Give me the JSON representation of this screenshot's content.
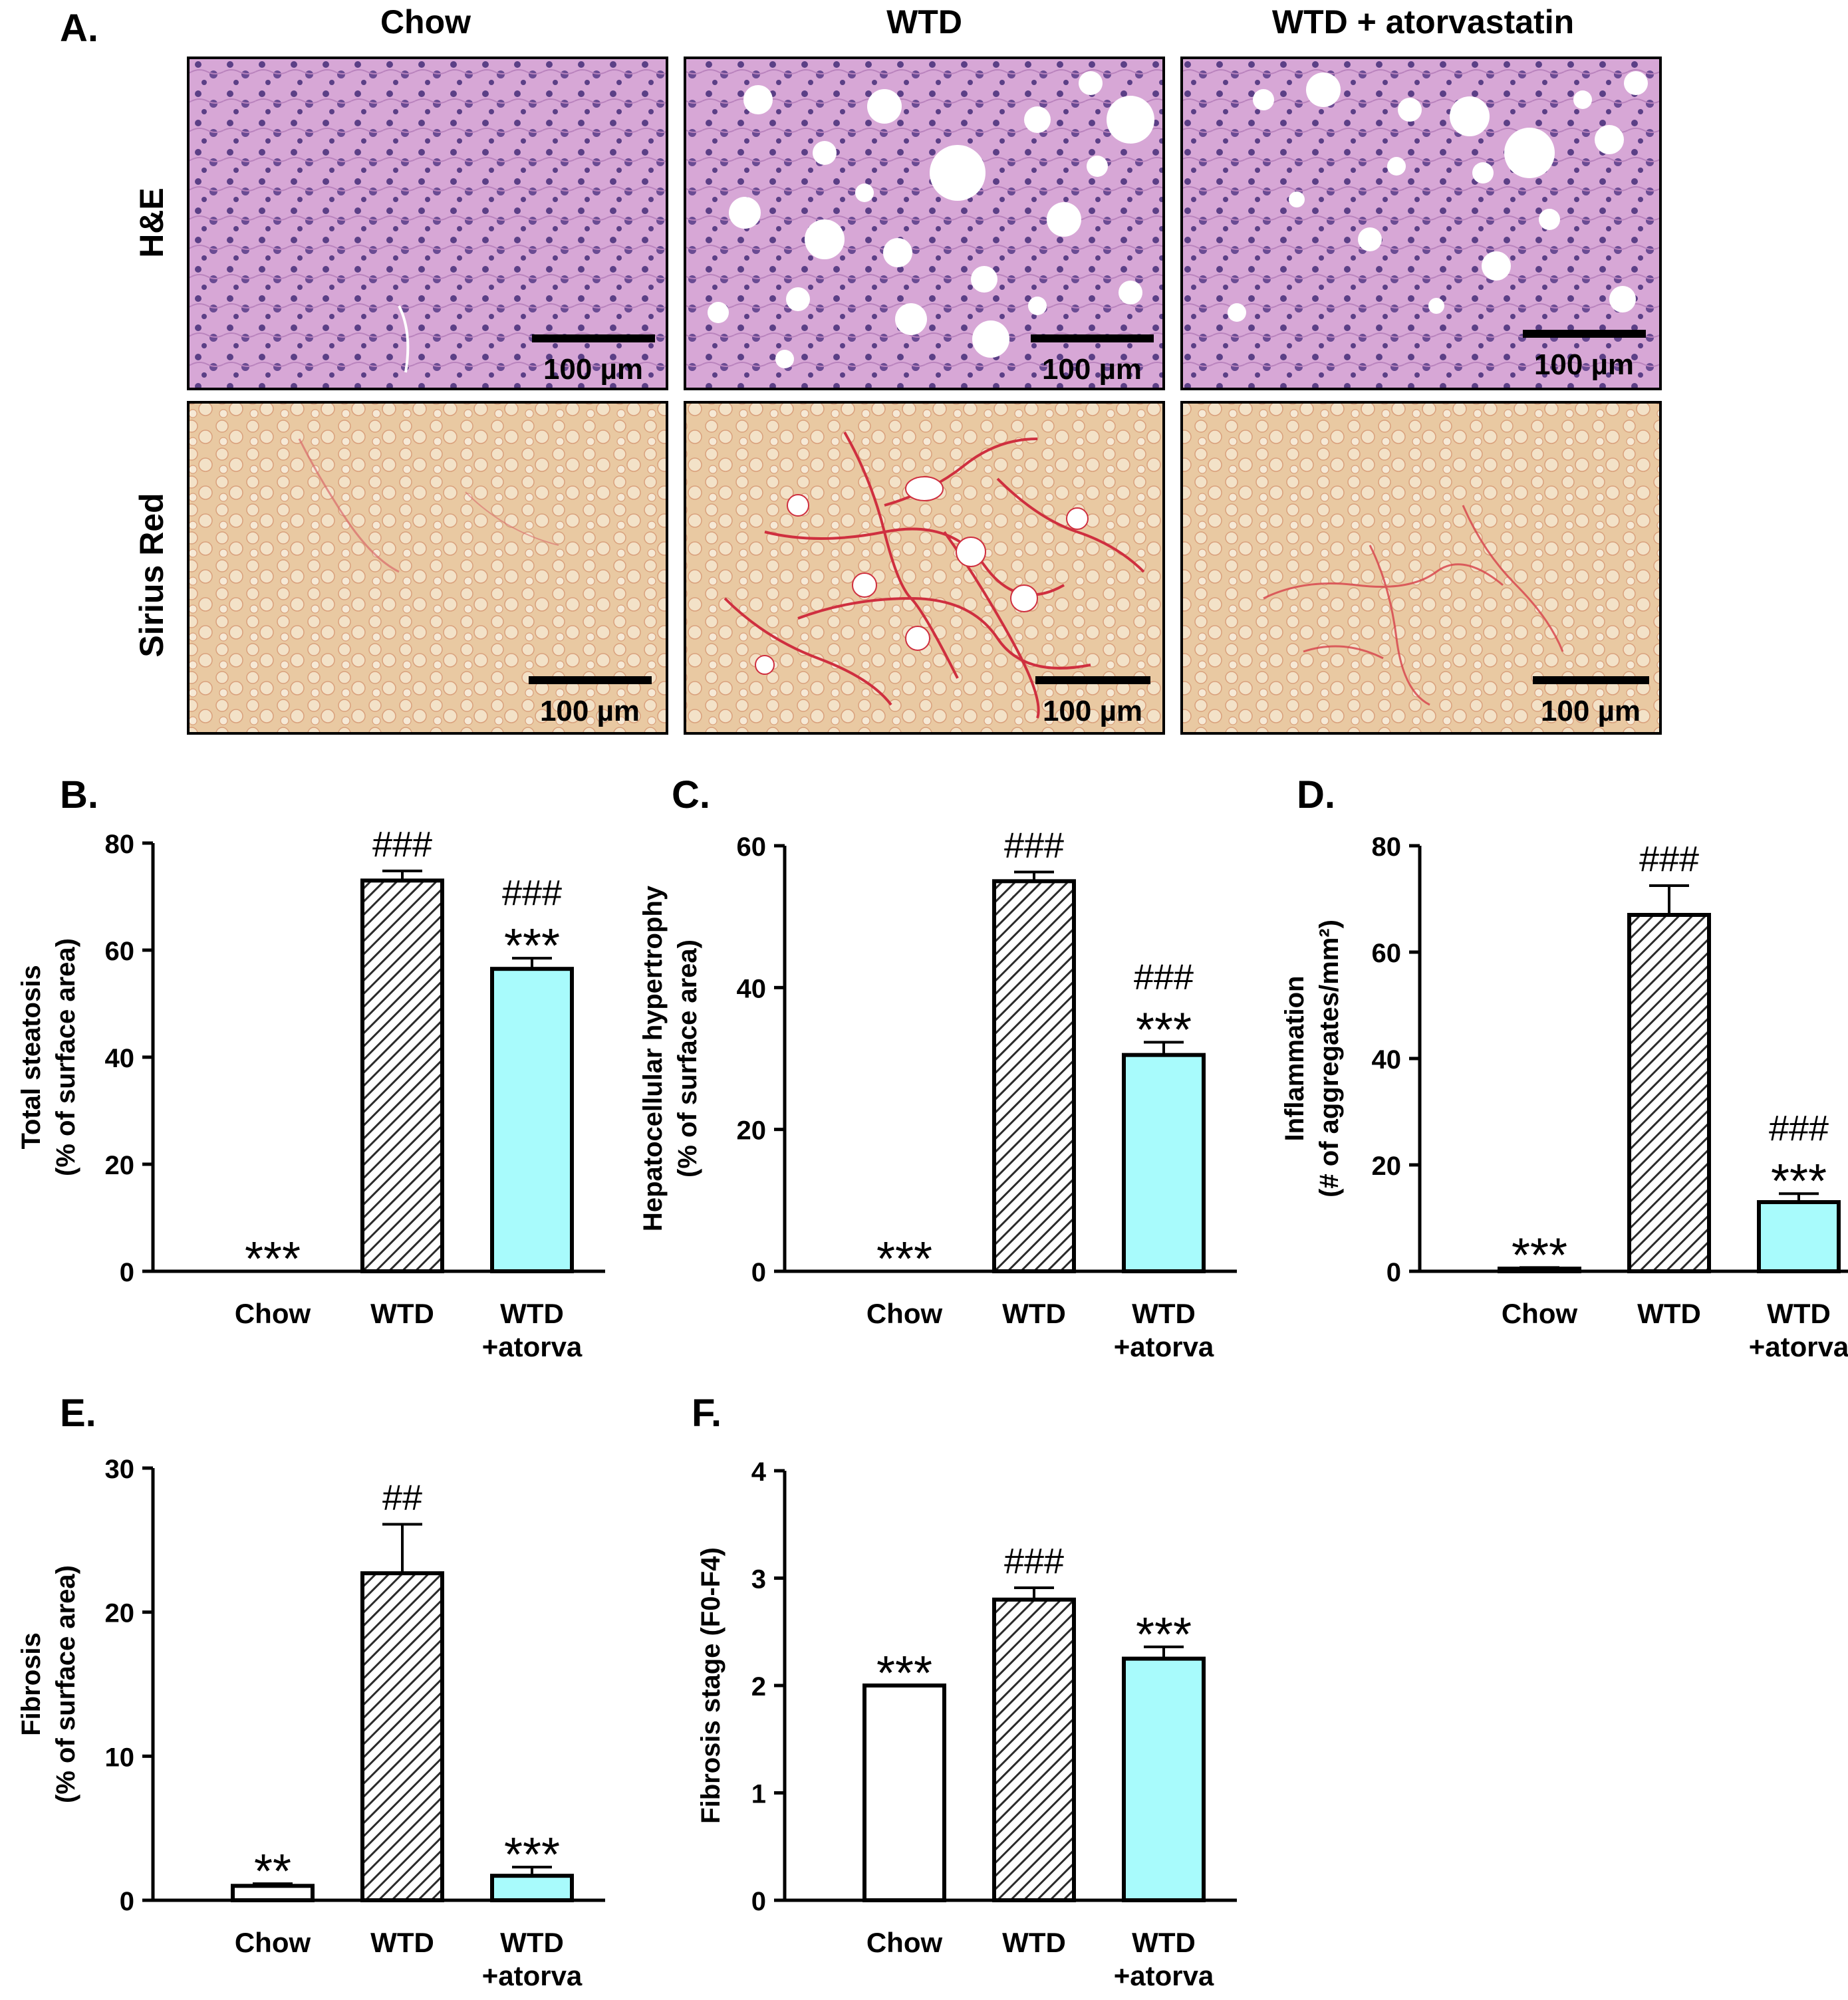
{
  "panel_letters": {
    "A": "A.",
    "B": "B.",
    "C": "C.",
    "D": "D.",
    "E": "E.",
    "F": "F."
  },
  "micrographs": {
    "column_titles": [
      "Chow",
      "WTD",
      "WTD + atorvastatin"
    ],
    "row_titles": [
      "H&E",
      "Sirius Red"
    ],
    "scale_bar_label": "100 µm",
    "colors": {
      "he_bg": "#d7a7d6",
      "he_nuclei": "#5b3f86",
      "sr_bg": "#e9c9a2",
      "sr_fiber": "#cf2f3f"
    }
  },
  "colors": {
    "chow": "#ffffff",
    "wtd_hatch": "#2b2b2b",
    "atorva": "#a8fbfc",
    "outline": "#000000"
  },
  "chart_data": [
    {
      "panel": "B.",
      "type": "bar",
      "categories": [
        "Chow",
        "WTD",
        "WTD +atorva"
      ],
      "values": [
        0,
        73,
        56.5
      ],
      "errors": [
        0,
        1.8,
        2.0
      ],
      "ylabel": [
        "Total steatosis",
        "(% of surface area)"
      ],
      "ylim": [
        0,
        80
      ],
      "yticks": [
        0,
        20,
        40,
        60,
        80
      ],
      "annotations": [
        [
          "***"
        ],
        [
          "###"
        ],
        [
          "###",
          "***"
        ]
      ]
    },
    {
      "panel": "C.",
      "type": "bar",
      "categories": [
        "Chow",
        "WTD",
        "WTD +atorva"
      ],
      "values": [
        0,
        55,
        30.5
      ],
      "errors": [
        0,
        1.3,
        1.8
      ],
      "ylabel": [
        "Hepatocellular hypertrophy",
        "(% of surface area)"
      ],
      "ylim": [
        0,
        60
      ],
      "yticks": [
        0,
        20,
        40,
        60
      ],
      "annotations": [
        [
          "***"
        ],
        [
          "###"
        ],
        [
          "###",
          "***"
        ]
      ]
    },
    {
      "panel": "D.",
      "type": "bar",
      "categories": [
        "Chow",
        "WTD",
        "WTD +atorva"
      ],
      "values": [
        0.5,
        67,
        13
      ],
      "errors": [
        0.2,
        5.5,
        1.6
      ],
      "ylabel": [
        "Inflammation",
        "(# of aggregates/mm²)"
      ],
      "ylim": [
        0,
        80
      ],
      "yticks": [
        0,
        20,
        40,
        60,
        80
      ],
      "annotations": [
        [
          "***"
        ],
        [
          "###"
        ],
        [
          "###",
          "***"
        ]
      ]
    },
    {
      "panel": "E.",
      "type": "bar",
      "categories": [
        "Chow",
        "WTD",
        "WTD +atorva"
      ],
      "values": [
        1,
        22.7,
        1.7
      ],
      "errors": [
        0.15,
        3.4,
        0.6
      ],
      "ylabel": [
        "Fibrosis",
        "(% of surface area)"
      ],
      "ylim": [
        0,
        30
      ],
      "yticks": [
        0,
        10,
        20,
        30
      ],
      "annotations": [
        [
          "**"
        ],
        [
          "##"
        ],
        [
          "***"
        ]
      ]
    },
    {
      "panel": "F.",
      "type": "bar",
      "categories": [
        "Chow",
        "WTD",
        "WTD +atorva"
      ],
      "values": [
        2,
        2.8,
        2.25
      ],
      "errors": [
        0,
        0.11,
        0.11
      ],
      "ylabel": [
        "Fibrosis stage (F0-F4)"
      ],
      "ylim": [
        0,
        4
      ],
      "yticks": [
        0,
        1,
        2,
        3,
        4
      ],
      "annotations": [
        [
          "***"
        ],
        [
          "###"
        ],
        [
          "***"
        ]
      ]
    }
  ]
}
